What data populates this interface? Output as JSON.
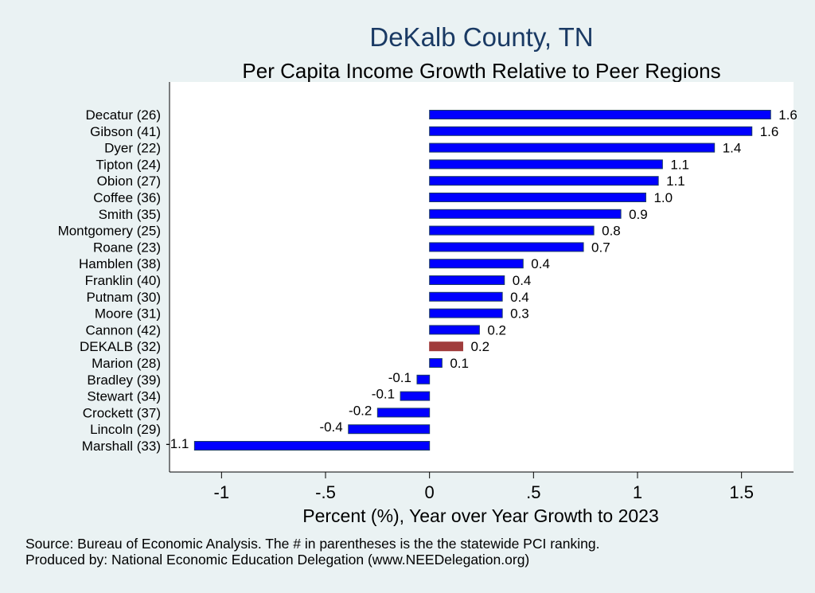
{
  "chart_data": {
    "type": "bar",
    "orientation": "horizontal",
    "title": "DeKalb County, TN",
    "subtitle": "Per Capita Income Growth Relative to Peer Regions",
    "xlabel": "Percent (%), Year over Year Growth to 2023",
    "xlim": [
      -1.25,
      1.75
    ],
    "xticks": [
      -1,
      -0.5,
      0,
      0.5,
      1,
      1.5
    ],
    "xtick_labels": [
      "-1",
      "-.5",
      "0",
      ".5",
      "1",
      "1.5"
    ],
    "categories": [
      "Decatur (26)",
      "Gibson (41)",
      "Dyer (22)",
      "Tipton (24)",
      "Obion (27)",
      "Coffee (36)",
      "Smith (35)",
      "Montgomery (25)",
      "Roane (23)",
      "Hamblen (38)",
      "Franklin (40)",
      "Putnam (30)",
      "Moore (31)",
      "Cannon (42)",
      "DEKALB (32)",
      "Marion (28)",
      "Bradley (39)",
      "Stewart (34)",
      "Crockett (37)",
      "Lincoln (29)",
      "Marshall (33)"
    ],
    "values": [
      1.64,
      1.55,
      1.37,
      1.12,
      1.1,
      1.04,
      0.92,
      0.79,
      0.74,
      0.45,
      0.36,
      0.35,
      0.35,
      0.24,
      0.16,
      0.06,
      -0.06,
      -0.14,
      -0.25,
      -0.39,
      -1.13
    ],
    "value_labels": [
      "1.6",
      "1.6",
      "1.4",
      "1.1",
      "1.1",
      "1.0",
      "0.9",
      "0.8",
      "0.7",
      "0.4",
      "0.4",
      "0.4",
      "0.3",
      "0.2",
      "0.2",
      "0.1",
      "-0.1",
      "-0.1",
      "-0.2",
      "-0.4",
      "-1.1"
    ],
    "highlight": "DEKALB (32)",
    "colors": {
      "bar": "#0000ff",
      "highlight": "#a03c3c",
      "bar_edge": "#1a3a64",
      "plot_bg": "#ffffff",
      "page_bg": "#eaf2f3",
      "title": "#1a3a64"
    }
  },
  "footer": {
    "source": "Source: Bureau of Economic Analysis. The # in parentheses is the the statewide PCI ranking.",
    "producer": "Produced by: National Economic Education Delegation (www.NEEDelegation.org)"
  }
}
